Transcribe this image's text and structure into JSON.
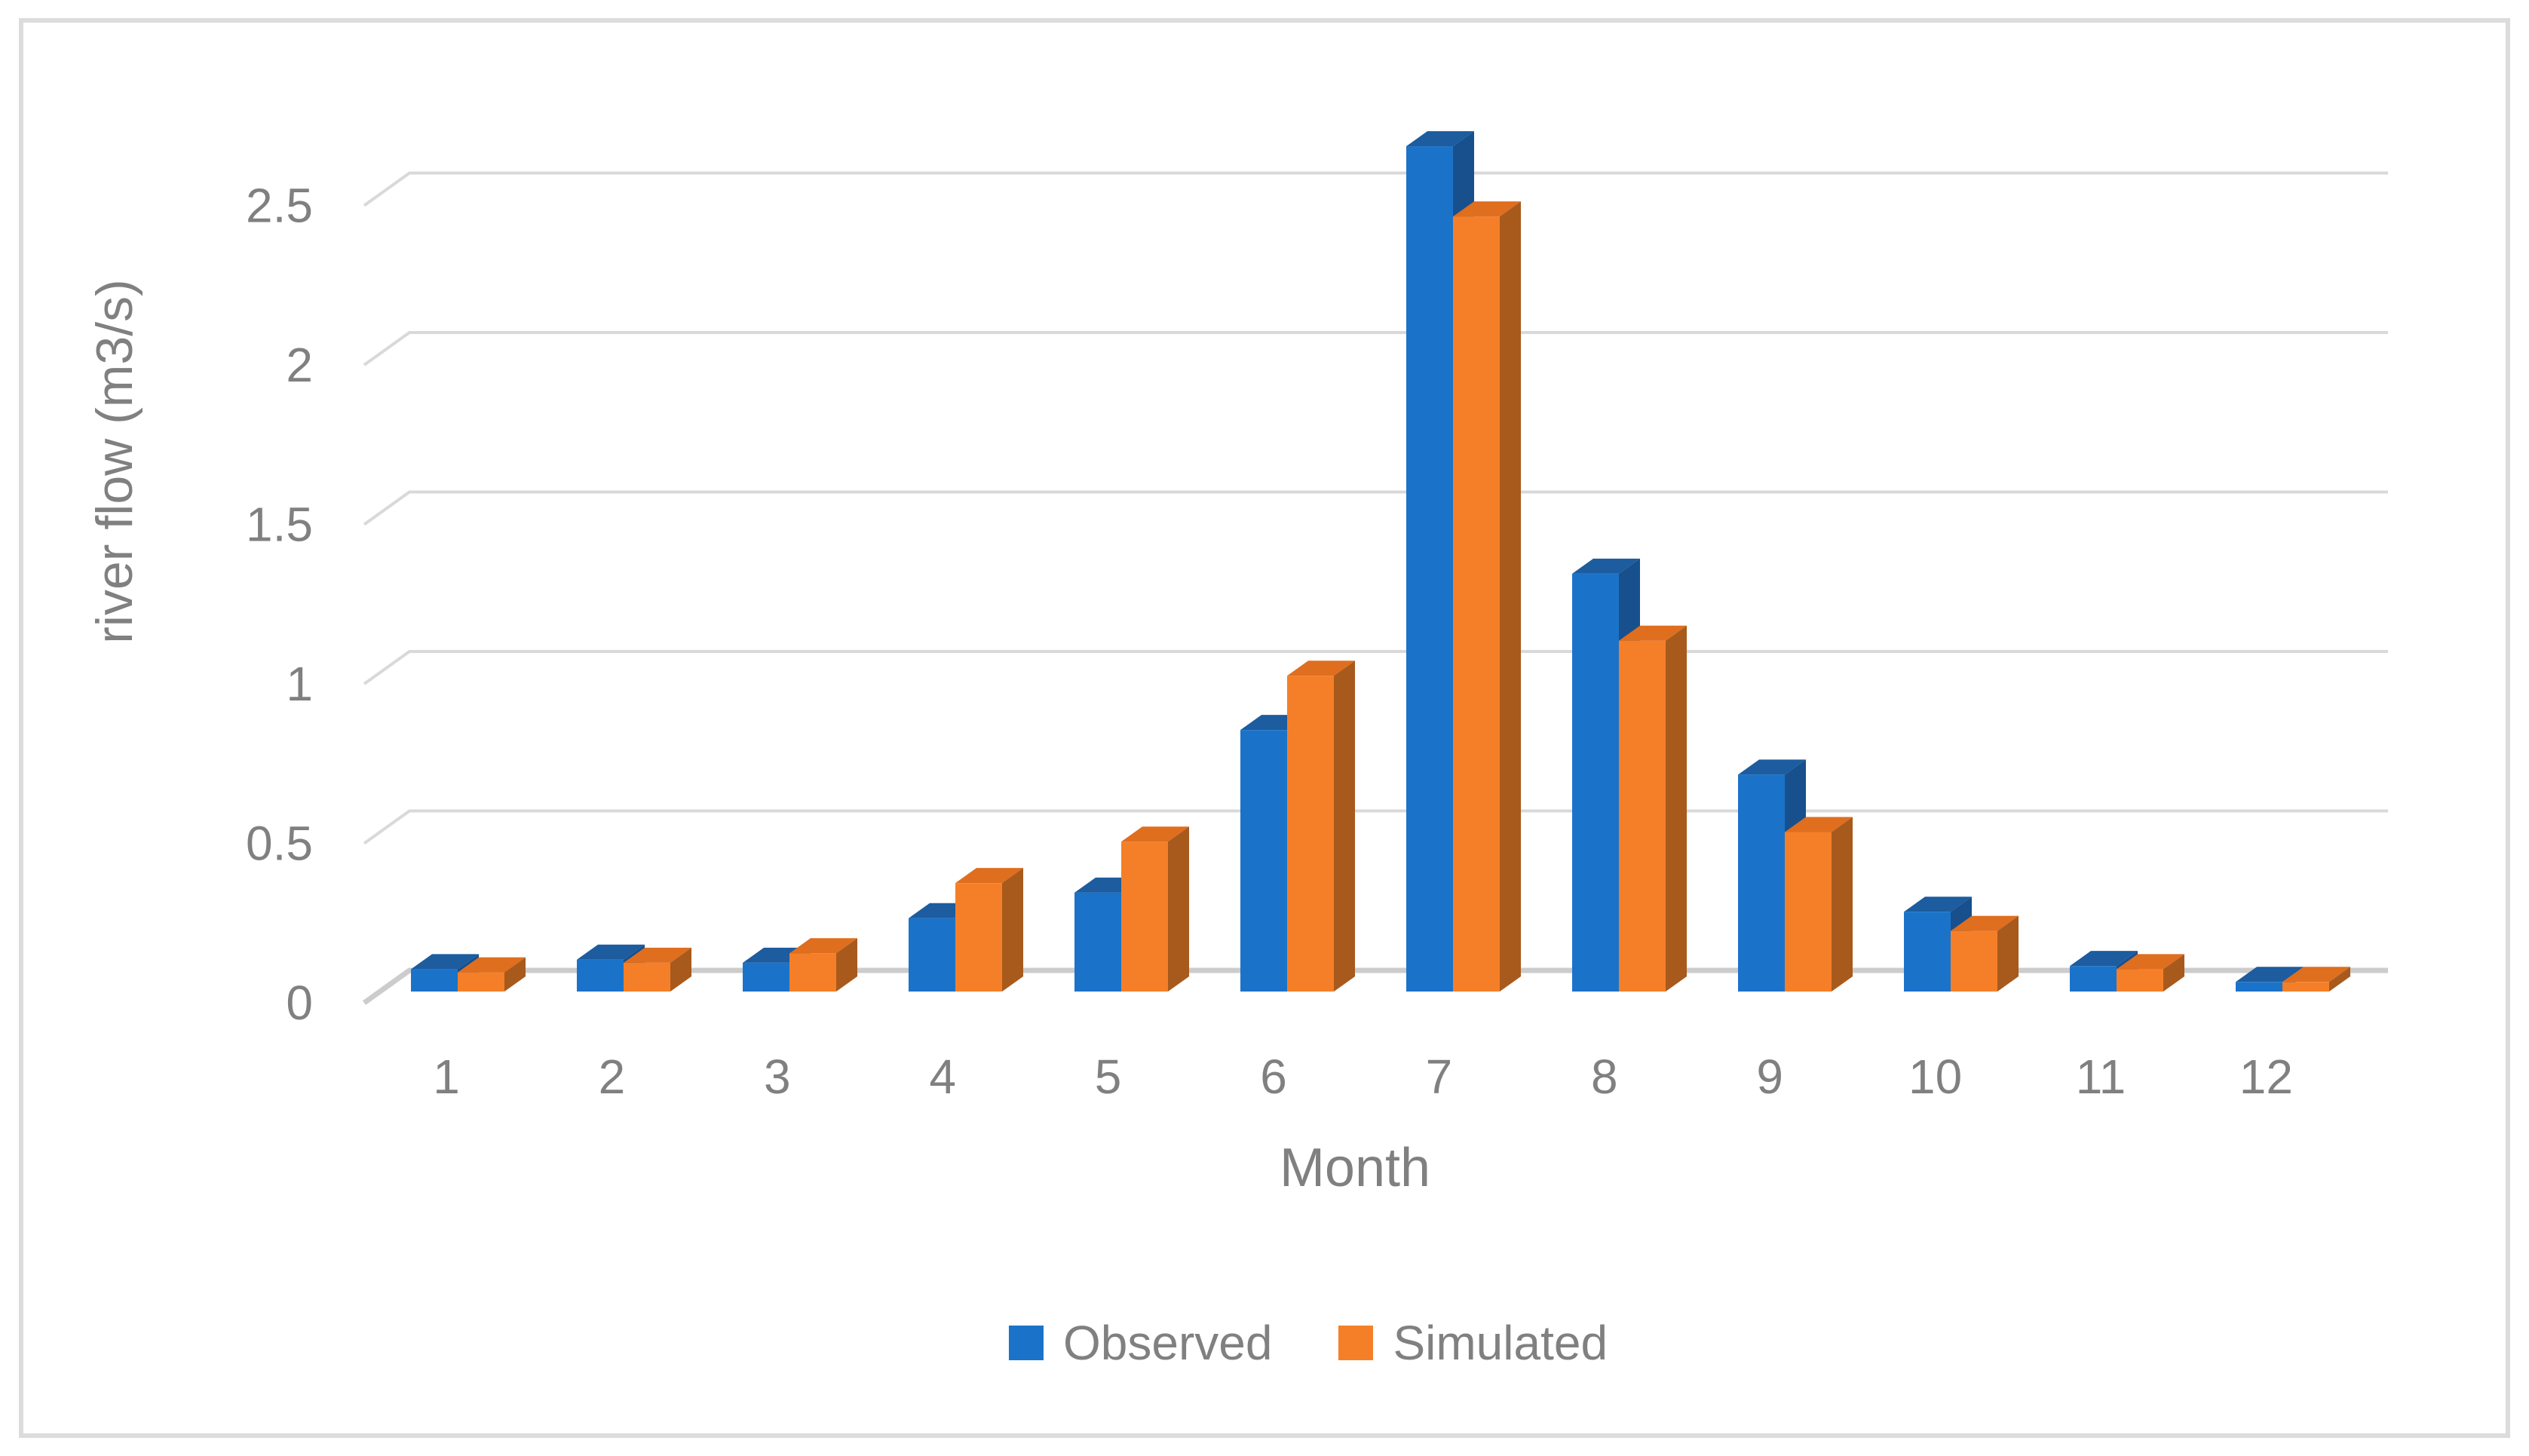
{
  "chart_data": {
    "type": "bar",
    "style": "3d-clustered-column",
    "title": "",
    "xlabel": "Month",
    "ylabel": "river flow (m3/s)",
    "categories": [
      "1",
      "2",
      "3",
      "4",
      "5",
      "6",
      "7",
      "8",
      "9",
      "10",
      "11",
      "12"
    ],
    "series": [
      {
        "name": "Observed",
        "color": "#1B73C9",
        "color_top": "#1C5C9F",
        "color_side": "#17508C",
        "values": [
          0.07,
          0.1,
          0.09,
          0.23,
          0.31,
          0.82,
          2.65,
          1.31,
          0.68,
          0.25,
          0.08,
          0.03
        ]
      },
      {
        "name": "Simulated",
        "color": "#F57F28",
        "color_top": "#DF6E1F",
        "color_side": "#A85A1C",
        "values": [
          0.06,
          0.09,
          0.12,
          0.34,
          0.47,
          0.99,
          2.43,
          1.1,
          0.5,
          0.19,
          0.07,
          0.03
        ]
      }
    ],
    "yticks": [
      "0",
      "0.5",
      "1",
      "1.5",
      "2",
      "2.5"
    ],
    "ylim": [
      0,
      2.75
    ],
    "grid": "horizontal",
    "legend_position": "bottom",
    "axis_text_color": "#808080",
    "grid_color": "#D9D9D9",
    "zero_line_color": "#CCCCCC",
    "border_color": "#DCDCDC"
  }
}
